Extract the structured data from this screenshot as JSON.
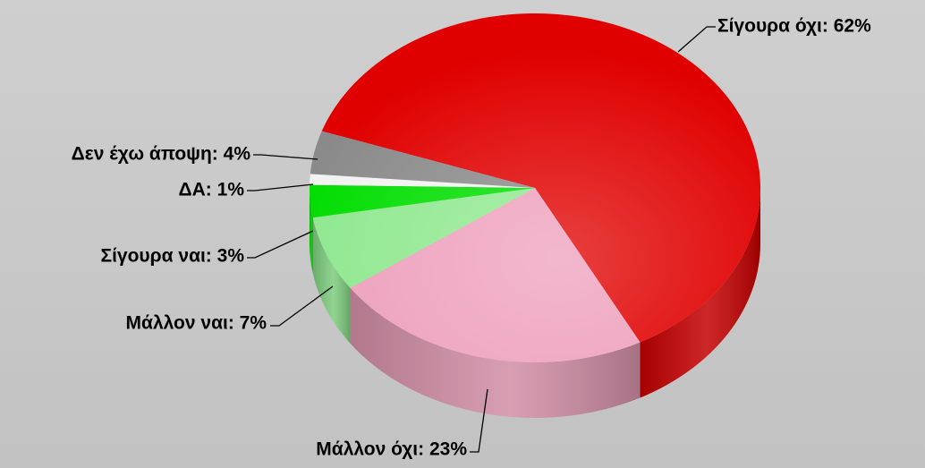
{
  "chart_data": {
    "type": "pie3d",
    "categories": [
      "Σίγουρα όχι",
      "Μάλλον όχι",
      "Μάλλον ναι",
      "Σίγουρα ναι",
      "ΔΑ",
      "Δεν έχω άποψη"
    ],
    "values": [
      62,
      23,
      7,
      3,
      1,
      4
    ],
    "value_labels": [
      "Σίγουρα όχι: 62%",
      "Μάλλον όχι: 23%",
      "Μάλλον ναι: 7%",
      "Σίγουρα ναι: 3%",
      "ΔΑ: 1%",
      "Δεν έχω άποψη: 4%"
    ],
    "colors": [
      "#e00000",
      "#eea0bc",
      "#8fe88f",
      "#00dd00",
      "#f2f2f2",
      "#8a8a8a"
    ]
  }
}
